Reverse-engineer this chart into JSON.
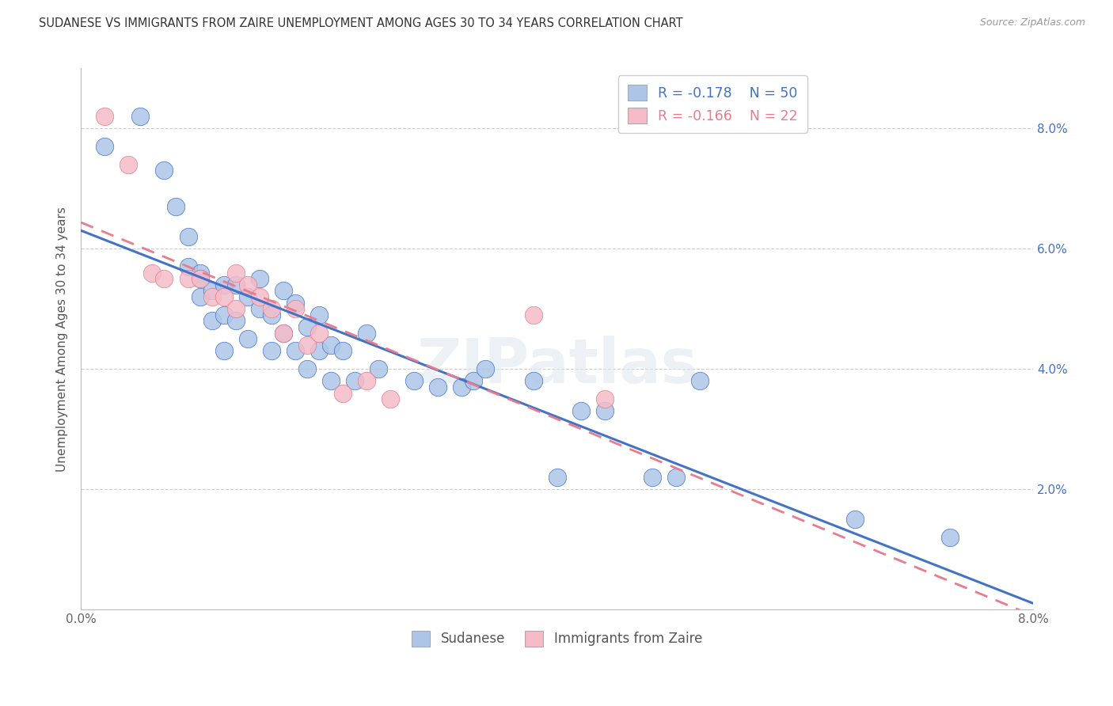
{
  "title": "SUDANESE VS IMMIGRANTS FROM ZAIRE UNEMPLOYMENT AMONG AGES 30 TO 34 YEARS CORRELATION CHART",
  "source": "Source: ZipAtlas.com",
  "ylabel": "Unemployment Among Ages 30 to 34 years",
  "xlim": [
    0.0,
    0.08
  ],
  "ylim": [
    0.0,
    0.09
  ],
  "ytick_vals": [
    0.0,
    0.02,
    0.04,
    0.06,
    0.08
  ],
  "ytick_labels": [
    "",
    "2.0%",
    "4.0%",
    "6.0%",
    "8.0%"
  ],
  "xtick_vals": [
    0.0,
    0.01,
    0.02,
    0.03,
    0.04,
    0.05,
    0.06,
    0.07,
    0.08
  ],
  "xtick_labels": [
    "0.0%",
    "",
    "",
    "",
    "",
    "",
    "",
    "",
    "8.0%"
  ],
  "legend_r1": "-0.178",
  "legend_n1": "50",
  "legend_r2": "-0.166",
  "legend_n2": "22",
  "color_blue": "#adc6e8",
  "color_pink": "#f5bcc8",
  "line_blue": "#4472c4",
  "line_pink": "#e87b8c",
  "watermark": "ZIPatlas",
  "sudanese_x": [
    0.002,
    0.005,
    0.007,
    0.008,
    0.009,
    0.009,
    0.01,
    0.01,
    0.01,
    0.011,
    0.011,
    0.012,
    0.012,
    0.012,
    0.013,
    0.013,
    0.014,
    0.014,
    0.015,
    0.015,
    0.016,
    0.016,
    0.017,
    0.017,
    0.018,
    0.018,
    0.019,
    0.019,
    0.02,
    0.02,
    0.021,
    0.021,
    0.022,
    0.023,
    0.024,
    0.025,
    0.028,
    0.03,
    0.032,
    0.033,
    0.034,
    0.038,
    0.04,
    0.042,
    0.044,
    0.048,
    0.05,
    0.052,
    0.065,
    0.073
  ],
  "sudanese_y": [
    0.077,
    0.082,
    0.073,
    0.067,
    0.062,
    0.057,
    0.056,
    0.055,
    0.052,
    0.053,
    0.048,
    0.054,
    0.049,
    0.043,
    0.054,
    0.048,
    0.052,
    0.045,
    0.055,
    0.05,
    0.049,
    0.043,
    0.053,
    0.046,
    0.051,
    0.043,
    0.047,
    0.04,
    0.049,
    0.043,
    0.044,
    0.038,
    0.043,
    0.038,
    0.046,
    0.04,
    0.038,
    0.037,
    0.037,
    0.038,
    0.04,
    0.038,
    0.022,
    0.033,
    0.033,
    0.022,
    0.022,
    0.038,
    0.015,
    0.012
  ],
  "zaire_x": [
    0.002,
    0.004,
    0.006,
    0.007,
    0.009,
    0.01,
    0.011,
    0.012,
    0.013,
    0.013,
    0.014,
    0.015,
    0.016,
    0.017,
    0.018,
    0.019,
    0.02,
    0.022,
    0.024,
    0.026,
    0.038,
    0.044
  ],
  "zaire_y": [
    0.082,
    0.074,
    0.056,
    0.055,
    0.055,
    0.055,
    0.052,
    0.052,
    0.056,
    0.05,
    0.054,
    0.052,
    0.05,
    0.046,
    0.05,
    0.044,
    0.046,
    0.036,
    0.038,
    0.035,
    0.049,
    0.035
  ]
}
